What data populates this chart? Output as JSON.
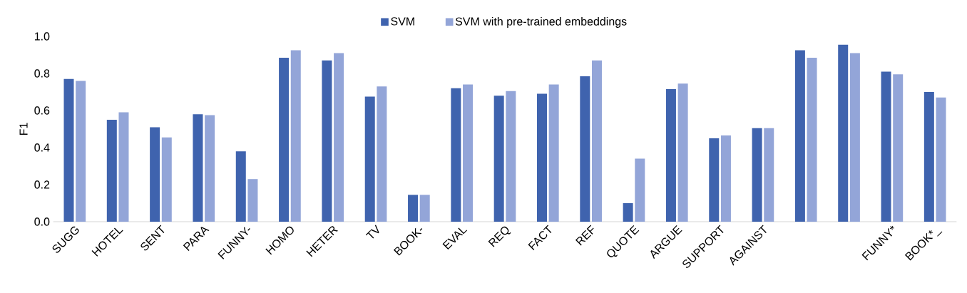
{
  "chart_data": {
    "type": "bar",
    "ylabel": "F1",
    "categories": [
      "SUGG",
      "HOTEL",
      "SENT",
      "PARA",
      "FUNNY-",
      "HOMO",
      "HETER",
      "TV",
      "BOOK-",
      "EVAL",
      "REQ",
      "FACT",
      "REF",
      "QUOTE",
      "ARGUE",
      "SUPPORT",
      "AGAINST",
      null,
      null,
      "FUNNY*",
      "BOOK*_"
    ],
    "series": [
      {
        "name": "SVM",
        "color": "#3f63ae",
        "values": [
          0.77,
          0.55,
          0.51,
          0.58,
          0.38,
          0.885,
          0.87,
          0.675,
          0.145,
          0.72,
          0.68,
          0.69,
          0.785,
          0.1,
          0.715,
          0.45,
          0.505,
          0.925,
          0.955,
          0.81,
          0.7
        ]
      },
      {
        "name": "SVM with pre-trained embeddings",
        "color": "#93a5d8",
        "values": [
          0.76,
          0.59,
          0.455,
          0.575,
          0.23,
          0.925,
          0.91,
          0.73,
          0.145,
          0.74,
          0.705,
          0.74,
          0.87,
          0.34,
          0.745,
          0.465,
          0.505,
          0.885,
          0.91,
          0.795,
          0.67
        ]
      }
    ],
    "ylim": [
      0,
      1.0
    ],
    "yticks": [
      {
        "value": 0,
        "label": "0.0"
      },
      {
        "value": 0.2,
        "label": "0.2"
      },
      {
        "value": 0.4,
        "label": "0.4"
      },
      {
        "value": 0.6,
        "label": "0.6"
      },
      {
        "value": 0.8,
        "label": "0.8"
      },
      {
        "value": 1.0,
        "label": "1.0"
      }
    ],
    "legend": "top",
    "grid": false
  }
}
